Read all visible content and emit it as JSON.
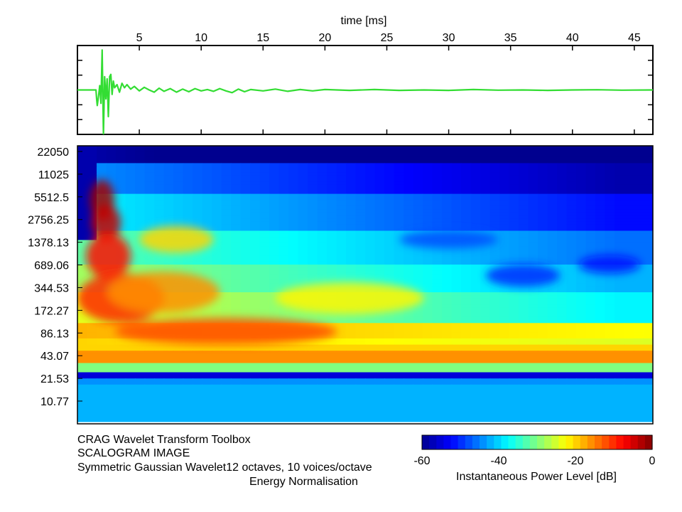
{
  "chart_data": [
    {
      "type": "line",
      "name": "waveform",
      "xlabel": "time [ms]",
      "xlim": [
        0,
        46.5
      ],
      "x_ticks": [
        "5",
        "10",
        "15",
        "20",
        "25",
        "30",
        "35",
        "40",
        "45"
      ],
      "x_tick_values": [
        5,
        10,
        15,
        20,
        25,
        30,
        35,
        40,
        45
      ],
      "ylim": [
        -1,
        1
      ],
      "y_tick_count": 7,
      "line_color": "#33dd33",
      "series": [
        {
          "x": [
            0,
            1.5,
            1.55,
            1.6,
            1.7,
            1.8,
            1.9,
            2.0,
            2.1,
            2.2,
            2.3,
            2.4,
            2.5,
            2.6,
            2.7,
            2.8,
            2.9,
            3.0,
            3.2,
            3.4,
            3.6,
            3.8,
            4.0,
            4.3,
            4.6,
            5.0,
            5.4,
            5.8,
            6.2,
            6.6,
            7.0,
            7.5,
            8.0,
            8.5,
            9.0,
            9.5,
            10.0,
            10.5,
            11.0,
            11.5,
            12.0,
            12.5,
            13.0,
            13.5,
            14.0,
            15.0,
            16.0,
            17.0,
            18.0,
            19.0,
            20.0,
            22.0,
            24.0,
            26.0,
            28.0,
            30.0,
            32.0,
            34.0,
            36.0,
            38.0,
            40.0,
            42.0,
            44.0,
            46.5
          ],
          "y": [
            0,
            0,
            -0.2,
            -0.35,
            -0.15,
            0.1,
            -0.3,
            0.9,
            -1.0,
            0.3,
            -0.2,
            0.25,
            -0.6,
            0.3,
            0.35,
            -0.1,
            0.2,
            0.05,
            0.12,
            -0.05,
            0.15,
            0.05,
            0.12,
            0.02,
            0.08,
            -0.02,
            0.06,
            0.0,
            -0.05,
            0.04,
            -0.03,
            0.03,
            -0.05,
            0.02,
            -0.04,
            0.03,
            -0.02,
            0.01,
            -0.03,
            0.03,
            -0.02,
            -0.06,
            0.02,
            -0.04,
            0.01,
            -0.02,
            0.02,
            -0.03,
            0.01,
            -0.02,
            0.01,
            -0.01,
            0.01,
            -0.01,
            0.0,
            -0.01,
            0.01,
            -0.005,
            0.0,
            -0.01,
            0.0,
            0.005,
            -0.005,
            0.0
          ]
        }
      ]
    },
    {
      "type": "heatmap",
      "name": "scalogram",
      "y_tick_labels": [
        "22050",
        "11025",
        "5512.5",
        "2756.25",
        "1378.13",
        "689.06",
        "344.53",
        "172.27",
        "86.13",
        "43.07",
        "21.53",
        "10.77"
      ],
      "y_tick_values": [
        22050,
        11025,
        5512.5,
        2756.25,
        1378.13,
        689.06,
        344.53,
        172.27,
        86.13,
        43.07,
        21.53,
        10.77
      ],
      "y_scale": "log2",
      "xlim": [
        0,
        46.5
      ],
      "value_range_db": [
        -60,
        0
      ],
      "colormap": "jet",
      "colormap_stops": [
        "#00008f",
        "#0000ff",
        "#0080ff",
        "#00ffff",
        "#80ff80",
        "#ffff00",
        "#ff8000",
        "#ff0000",
        "#800000"
      ]
    }
  ],
  "colorbar": {
    "ticks": [
      "-60",
      "-40",
      "-20",
      "0"
    ],
    "tick_values": [
      -60,
      -40,
      -20,
      0
    ],
    "label": "Instantaneous Power Level  [dB]"
  },
  "caption": {
    "line1": "CRAG Wavelet Transform Toolbox",
    "line2": "SCALOGRAM IMAGE",
    "line3": "Symmetric Gaussian Wavelet12 octaves, 10 voices/octave",
    "line4": "Energy Normalisation"
  }
}
